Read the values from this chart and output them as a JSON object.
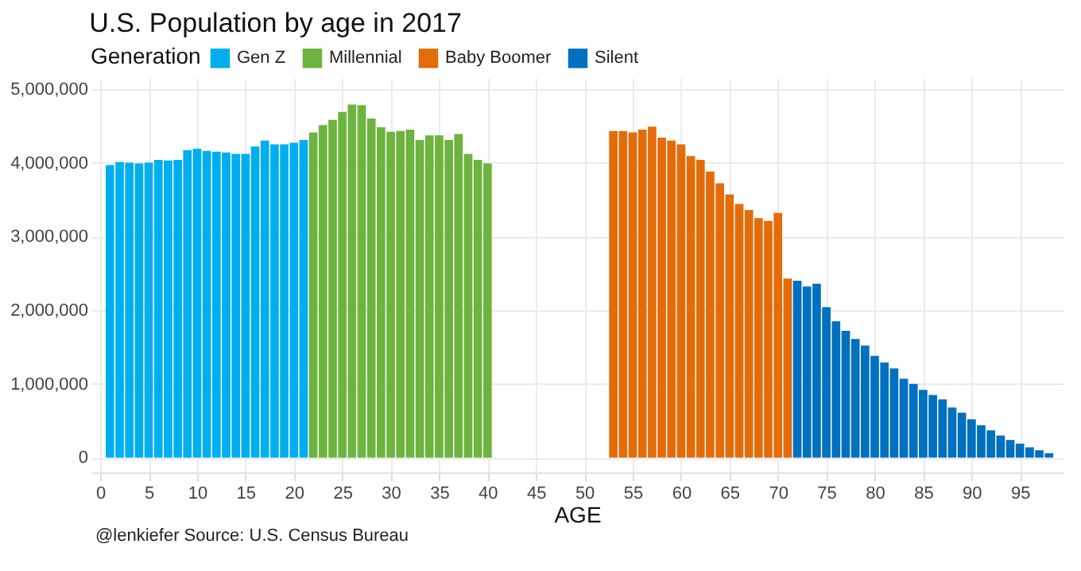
{
  "chart_data": {
    "type": "bar",
    "title": "U.S. Population by age in 2017",
    "legend_title": "Generation",
    "xlabel": "AGE",
    "annotations": [
      "@lenkiefer Source: U.S. Census Bureau"
    ],
    "xlim": [
      -1,
      99.5
    ],
    "xticks": [
      0,
      5,
      10,
      15,
      20,
      25,
      30,
      35,
      40,
      45,
      50,
      55,
      60,
      65,
      70,
      75,
      80,
      85,
      90,
      95
    ],
    "ylim": [
      -200000,
      5150000
    ],
    "yticks": [
      {
        "value": 0,
        "label": "0"
      },
      {
        "value": 1000000,
        "label": "1,000,000"
      },
      {
        "value": 2000000,
        "label": "2,000,000"
      },
      {
        "value": 3000000,
        "label": "3,000,000"
      },
      {
        "value": 4000000,
        "label": "4,000,000"
      },
      {
        "value": 5000000,
        "label": "5,000,000"
      }
    ],
    "grid": true,
    "legend": "top",
    "series": [
      {
        "name": "Gen Z",
        "color": "#00aeef",
        "x": [
          1,
          2,
          3,
          4,
          5,
          6,
          7,
          8,
          9,
          10,
          11,
          12,
          13,
          14,
          15,
          16,
          17,
          18,
          19,
          20,
          21
        ],
        "values": [
          3970000,
          4010000,
          4000000,
          3990000,
          4000000,
          4040000,
          4030000,
          4040000,
          4170000,
          4190000,
          4160000,
          4150000,
          4140000,
          4120000,
          4120000,
          4220000,
          4300000,
          4250000,
          4250000,
          4270000,
          4310000
        ]
      },
      {
        "name": "Millennial",
        "color": "#6db33f",
        "x": [
          22,
          23,
          24,
          25,
          26,
          27,
          28,
          29,
          30,
          31,
          32,
          33,
          34,
          35,
          36,
          37,
          38,
          39,
          40
        ],
        "values": [
          4410000,
          4510000,
          4580000,
          4690000,
          4790000,
          4780000,
          4600000,
          4480000,
          4420000,
          4430000,
          4450000,
          4310000,
          4370000,
          4370000,
          4310000,
          4390000,
          4120000,
          4040000,
          3990000
        ]
      },
      {
        "name": "Baby Boomer",
        "color": "#e36c09",
        "x": [
          53,
          54,
          55,
          56,
          57,
          58,
          59,
          60,
          61,
          62,
          63,
          64,
          65,
          66,
          67,
          68,
          69,
          70,
          71
        ],
        "values": [
          4430000,
          4430000,
          4410000,
          4450000,
          4490000,
          4340000,
          4300000,
          4250000,
          4090000,
          4040000,
          3880000,
          3720000,
          3570000,
          3440000,
          3360000,
          3250000,
          3210000,
          3320000,
          2430000
        ]
      },
      {
        "name": "Silent",
        "color": "#0070c0",
        "x": [
          72,
          73,
          74,
          75,
          76,
          77,
          78,
          79,
          80,
          81,
          82,
          83,
          84,
          85,
          86,
          87,
          88,
          89,
          90,
          91,
          92,
          93,
          94,
          95,
          96,
          97,
          98
        ],
        "values": [
          2400000,
          2320000,
          2360000,
          2040000,
          1850000,
          1720000,
          1610000,
          1520000,
          1380000,
          1290000,
          1210000,
          1070000,
          1000000,
          920000,
          850000,
          790000,
          680000,
          610000,
          520000,
          440000,
          370000,
          300000,
          240000,
          190000,
          140000,
          100000,
          60000
        ]
      }
    ]
  }
}
